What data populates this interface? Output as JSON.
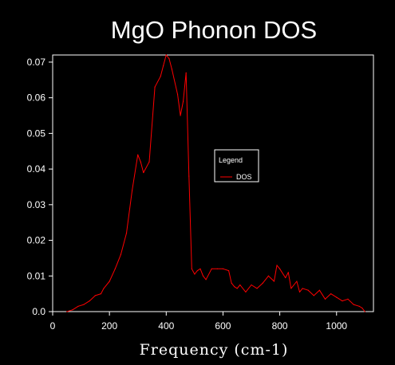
{
  "chart_data": {
    "type": "line",
    "title": "MgO Phonon DOS",
    "xlabel": "Frequency (cm-1)",
    "ylabel": "",
    "xlim": [
      0,
      1130
    ],
    "ylim": [
      0,
      0.072
    ],
    "xticks": [
      0,
      200,
      400,
      600,
      800,
      1000
    ],
    "yticks": [
      0.0,
      0.01,
      0.02,
      0.03,
      0.04,
      0.05,
      0.06,
      0.07
    ],
    "ytick_labels": [
      "0.0",
      "0.01",
      "0.02",
      "0.03",
      "0.04",
      "0.05",
      "0.06",
      "0.07"
    ],
    "xtick_labels": [
      "0",
      "200",
      "400",
      "600",
      "800",
      "1000"
    ],
    "grid": false,
    "legend": {
      "title": "Legend",
      "position": "center-right"
    },
    "series": [
      {
        "name": "DOS",
        "color": "#ff0000",
        "x": [
          50,
          70,
          90,
          110,
          130,
          150,
          170,
          180,
          200,
          220,
          240,
          260,
          280,
          300,
          310,
          320,
          340,
          360,
          380,
          390,
          400,
          410,
          420,
          440,
          450,
          460,
          470,
          480,
          490,
          500,
          510,
          520,
          530,
          540,
          560,
          580,
          600,
          620,
          630,
          640,
          650,
          660,
          680,
          700,
          720,
          740,
          760,
          780,
          790,
          800,
          820,
          830,
          840,
          860,
          870,
          880,
          900,
          920,
          940,
          960,
          980,
          1000,
          1020,
          1040,
          1060,
          1080,
          1090,
          1100
        ],
        "y": [
          0.0,
          0.0005,
          0.0015,
          0.002,
          0.003,
          0.0045,
          0.005,
          0.0065,
          0.0085,
          0.012,
          0.016,
          0.022,
          0.034,
          0.044,
          0.042,
          0.039,
          0.042,
          0.063,
          0.066,
          0.069,
          0.072,
          0.071,
          0.068,
          0.061,
          0.055,
          0.059,
          0.067,
          0.038,
          0.012,
          0.0105,
          0.0115,
          0.012,
          0.01,
          0.009,
          0.012,
          0.012,
          0.012,
          0.0115,
          0.008,
          0.007,
          0.0065,
          0.0075,
          0.0055,
          0.0075,
          0.0065,
          0.008,
          0.01,
          0.0085,
          0.013,
          0.012,
          0.0095,
          0.011,
          0.0065,
          0.0085,
          0.0055,
          0.0065,
          0.006,
          0.0045,
          0.006,
          0.0035,
          0.005,
          0.004,
          0.003,
          0.0035,
          0.002,
          0.0015,
          0.001,
          0.0
        ]
      }
    ]
  }
}
